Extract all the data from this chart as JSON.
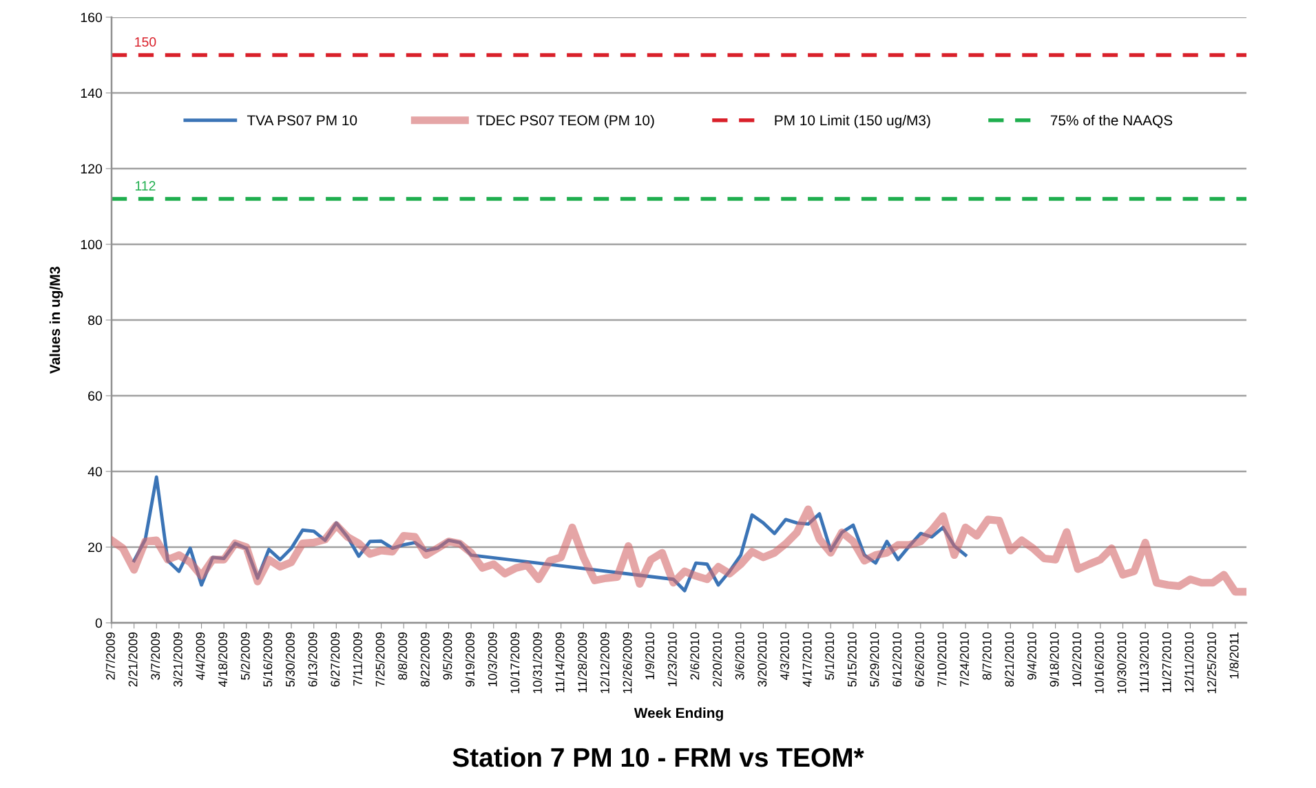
{
  "chart_data": {
    "type": "line",
    "title": "Station 7 PM 10 - FRM vs TEOM*",
    "xlabel": "Week Ending",
    "ylabel": "Values in ug/M3",
    "x": [
      "2009-02-07",
      "2009-02-14",
      "2009-02-21",
      "2009-02-28",
      "2009-03-07",
      "2009-03-14",
      "2009-03-21",
      "2009-03-28",
      "2009-04-04",
      "2009-04-11",
      "2009-04-18",
      "2009-04-25",
      "2009-05-02",
      "2009-05-09",
      "2009-05-16",
      "2009-05-23",
      "2009-05-30",
      "2009-06-06",
      "2009-06-13",
      "2009-06-20",
      "2009-06-27",
      "2009-07-04",
      "2009-07-11",
      "2009-07-18",
      "2009-07-25",
      "2009-08-01",
      "2009-08-08",
      "2009-08-15",
      "2009-08-22",
      "2009-08-29",
      "2009-09-05",
      "2009-09-12",
      "2009-09-19",
      "2009-09-26",
      "2009-10-03",
      "2009-10-10",
      "2009-10-17",
      "2009-10-24",
      "2009-10-31",
      "2009-11-07",
      "2009-11-14",
      "2009-11-21",
      "2009-11-28",
      "2009-12-05",
      "2009-12-12",
      "2009-12-19",
      "2009-12-26",
      "2010-01-02",
      "2010-01-09",
      "2010-01-16",
      "2010-01-23",
      "2010-01-30",
      "2010-02-06",
      "2010-02-13",
      "2010-02-20",
      "2010-02-27",
      "2010-03-06",
      "2010-03-13",
      "2010-03-20",
      "2010-03-27",
      "2010-04-03",
      "2010-04-10",
      "2010-04-17",
      "2010-04-24",
      "2010-05-01",
      "2010-05-08",
      "2010-05-15",
      "2010-05-22",
      "2010-05-29",
      "2010-06-05",
      "2010-06-12",
      "2010-06-19",
      "2010-06-26",
      "2010-07-03",
      "2010-07-10",
      "2010-07-17",
      "2010-07-24",
      "2010-07-31",
      "2010-08-07",
      "2010-08-14",
      "2010-08-21",
      "2010-08-28",
      "2010-09-04",
      "2010-09-11",
      "2010-09-18",
      "2010-09-25",
      "2010-10-02",
      "2010-10-09",
      "2010-10-16",
      "2010-10-23",
      "2010-10-30",
      "2010-11-06",
      "2010-11-13",
      "2010-11-20",
      "2010-11-27",
      "2010-12-04",
      "2010-12-11",
      "2010-12-18",
      "2010-12-25",
      "2011-01-01",
      "2011-01-08",
      "2011-01-15"
    ],
    "series": [
      {
        "name": "TVA PS07 PM 10",
        "color": "#3b74b6",
        "x": [
          "2009-02-21",
          "2009-02-28",
          "2009-03-07",
          "2009-03-14",
          "2009-03-21",
          "2009-03-28",
          "2009-04-04",
          "2009-04-11",
          "2009-04-18",
          "2009-04-25",
          "2009-05-02",
          "2009-05-09",
          "2009-05-16",
          "2009-05-23",
          "2009-05-30",
          "2009-06-06",
          "2009-06-13",
          "2009-06-20",
          "2009-06-27",
          "2009-07-04",
          "2009-07-11",
          "2009-07-18",
          "2009-07-25",
          "2009-08-01",
          "2009-08-08",
          "2009-08-15",
          "2009-08-22",
          "2009-08-29",
          "2009-09-05",
          "2009-09-12",
          "2009-09-19",
          "2010-01-23",
          "2010-01-30",
          "2010-02-06",
          "2010-02-13",
          "2010-02-20",
          "2010-02-27",
          "2010-03-06",
          "2010-03-13",
          "2010-03-20",
          "2010-03-27",
          "2010-04-03",
          "2010-04-10",
          "2010-04-17",
          "2010-04-24",
          "2010-05-01",
          "2010-05-08",
          "2010-05-15",
          "2010-05-22",
          "2010-05-29",
          "2010-06-05",
          "2010-06-12",
          "2010-06-19",
          "2010-06-26",
          "2010-07-03",
          "2010-07-10",
          "2010-07-17",
          "2010-07-24"
        ],
        "values": [
          16.4,
          22,
          38.5,
          16.4,
          13.6,
          19.7,
          10,
          17.3,
          17,
          21,
          19.7,
          11.8,
          19.4,
          16.7,
          19.7,
          24.5,
          24.2,
          21.8,
          26.4,
          22.7,
          17.6,
          21.5,
          21.6,
          19.7,
          20.6,
          21.2,
          19.1,
          19.7,
          21.8,
          21.2,
          17.9,
          11.5,
          8.5,
          15.8,
          15.5,
          10,
          13.6,
          17.9,
          28.5,
          26.4,
          23.6,
          27.3,
          26.4,
          26.1,
          28.8,
          19.1,
          23.9,
          25.8,
          17.9,
          15.8,
          21.5,
          16.7,
          20.3,
          23.6,
          22.7,
          25.2,
          20.3,
          17.9
        ]
      },
      {
        "name": "TDEC PS07 TEOM (PM 10)",
        "color": "#d4696a",
        "values": [
          21.8,
          19.7,
          14,
          21.5,
          21.8,
          16.7,
          17.9,
          16,
          12.4,
          16.7,
          16.7,
          21,
          20,
          10.9,
          16.7,
          14.8,
          16,
          21,
          21.2,
          22,
          25.8,
          22.7,
          21,
          18.2,
          19.1,
          18.8,
          23,
          22.7,
          17.9,
          19.7,
          21.5,
          20.9,
          18.5,
          14.5,
          15.5,
          13,
          14.5,
          15.2,
          11.5,
          16.4,
          17.3,
          25.2,
          17.3,
          11.2,
          11.8,
          12.1,
          20.3,
          10.3,
          16.7,
          18.5,
          10.6,
          13.6,
          12.4,
          11.5,
          14.8,
          13,
          15.5,
          18.8,
          17.3,
          18.5,
          20.9,
          23.9,
          30,
          22.1,
          18.5,
          23.9,
          21.5,
          16.4,
          17.9,
          18.5,
          20.6,
          20.6,
          21.5,
          24.5,
          28.2,
          17.9,
          25.2,
          23,
          27.3,
          27,
          19.1,
          21.8,
          19.7,
          17,
          16.7,
          24,
          14.2,
          15.5,
          16.7,
          19.7,
          12.7,
          13.6,
          21.2,
          10.6,
          10,
          9.7,
          11.5,
          10.6,
          10.6,
          12.7,
          8.2,
          8.2
        ]
      }
    ],
    "ref_lines": [
      {
        "axis": "y",
        "value": 150,
        "label": "PM 10 Limit (150 ug/M3)",
        "color": "#d9202a",
        "line_style": "dashed"
      },
      {
        "axis": "y",
        "value": 112,
        "label": "75% of the NAAQS",
        "color": "#1fae4e",
        "line_style": "dashed"
      }
    ],
    "annotations": [
      {
        "text": "150",
        "x": "2009-02-28",
        "y": 150
      },
      {
        "text": "112",
        "x": "2009-02-28",
        "y": 112
      }
    ],
    "xlim": [
      "2009-02-07",
      "2011-01-15"
    ],
    "xticks": [
      {
        "value": "2009-02-07",
        "label": "2/7/2009"
      },
      {
        "value": "2009-02-21",
        "label": "2/21/2009"
      },
      {
        "value": "2009-03-07",
        "label": "3/7/2009"
      },
      {
        "value": "2009-03-21",
        "label": "3/21/2009"
      },
      {
        "value": "2009-04-04",
        "label": "4/4/2009"
      },
      {
        "value": "2009-04-18",
        "label": "4/18/2009"
      },
      {
        "value": "2009-05-02",
        "label": "5/2/2009"
      },
      {
        "value": "2009-05-16",
        "label": "5/16/2009"
      },
      {
        "value": "2009-05-30",
        "label": "5/30/2009"
      },
      {
        "value": "2009-06-13",
        "label": "6/13/2009"
      },
      {
        "value": "2009-06-27",
        "label": "6/27/2009"
      },
      {
        "value": "2009-07-11",
        "label": "7/11/2009"
      },
      {
        "value": "2009-07-25",
        "label": "7/25/2009"
      },
      {
        "value": "2009-08-08",
        "label": "8/8/2009"
      },
      {
        "value": "2009-08-22",
        "label": "8/22/2009"
      },
      {
        "value": "2009-09-05",
        "label": "9/5/2009"
      },
      {
        "value": "2009-09-19",
        "label": "9/19/2009"
      },
      {
        "value": "2009-10-03",
        "label": "10/3/2009"
      },
      {
        "value": "2009-10-17",
        "label": "10/17/2009"
      },
      {
        "value": "2009-10-31",
        "label": "10/31/2009"
      },
      {
        "value": "2009-11-14",
        "label": "11/14/2009"
      },
      {
        "value": "2009-11-28",
        "label": "11/28/2009"
      },
      {
        "value": "2009-12-12",
        "label": "12/12/2009"
      },
      {
        "value": "2009-12-26",
        "label": "12/26/2009"
      },
      {
        "value": "2010-01-09",
        "label": "1/9/2010"
      },
      {
        "value": "2010-01-23",
        "label": "1/23/2010"
      },
      {
        "value": "2010-02-06",
        "label": "2/6/2010"
      },
      {
        "value": "2010-02-20",
        "label": "2/20/2010"
      },
      {
        "value": "2010-03-06",
        "label": "3/6/2010"
      },
      {
        "value": "2010-03-20",
        "label": "3/20/2010"
      },
      {
        "value": "2010-04-03",
        "label": "4/3/2010"
      },
      {
        "value": "2010-04-17",
        "label": "4/17/2010"
      },
      {
        "value": "2010-05-01",
        "label": "5/1/2010"
      },
      {
        "value": "2010-05-15",
        "label": "5/15/2010"
      },
      {
        "value": "2010-05-29",
        "label": "5/29/2010"
      },
      {
        "value": "2010-06-12",
        "label": "6/12/2010"
      },
      {
        "value": "2010-06-26",
        "label": "6/26/2010"
      },
      {
        "value": "2010-07-10",
        "label": "7/10/2010"
      },
      {
        "value": "2010-07-24",
        "label": "7/24/2010"
      },
      {
        "value": "2010-08-07",
        "label": "8/7/2010"
      },
      {
        "value": "2010-08-21",
        "label": "8/21/2010"
      },
      {
        "value": "2010-09-04",
        "label": "9/4/2010"
      },
      {
        "value": "2010-09-18",
        "label": "9/18/2010"
      },
      {
        "value": "2010-10-02",
        "label": "10/2/2010"
      },
      {
        "value": "2010-10-16",
        "label": "10/16/2010"
      },
      {
        "value": "2010-10-30",
        "label": "10/30/2010"
      },
      {
        "value": "2010-11-13",
        "label": "11/13/2010"
      },
      {
        "value": "2010-11-27",
        "label": "11/27/2010"
      },
      {
        "value": "2010-12-11",
        "label": "12/11/2010"
      },
      {
        "value": "2010-12-25",
        "label": "12/25/2010"
      },
      {
        "value": "2011-01-08",
        "label": "1/8/2011"
      }
    ],
    "ylim": [
      0,
      160
    ],
    "yticks": [
      0,
      20,
      40,
      60,
      80,
      100,
      120,
      140,
      160
    ],
    "grid": "y",
    "legend": "top",
    "marker": "none",
    "line_style": "solid"
  }
}
